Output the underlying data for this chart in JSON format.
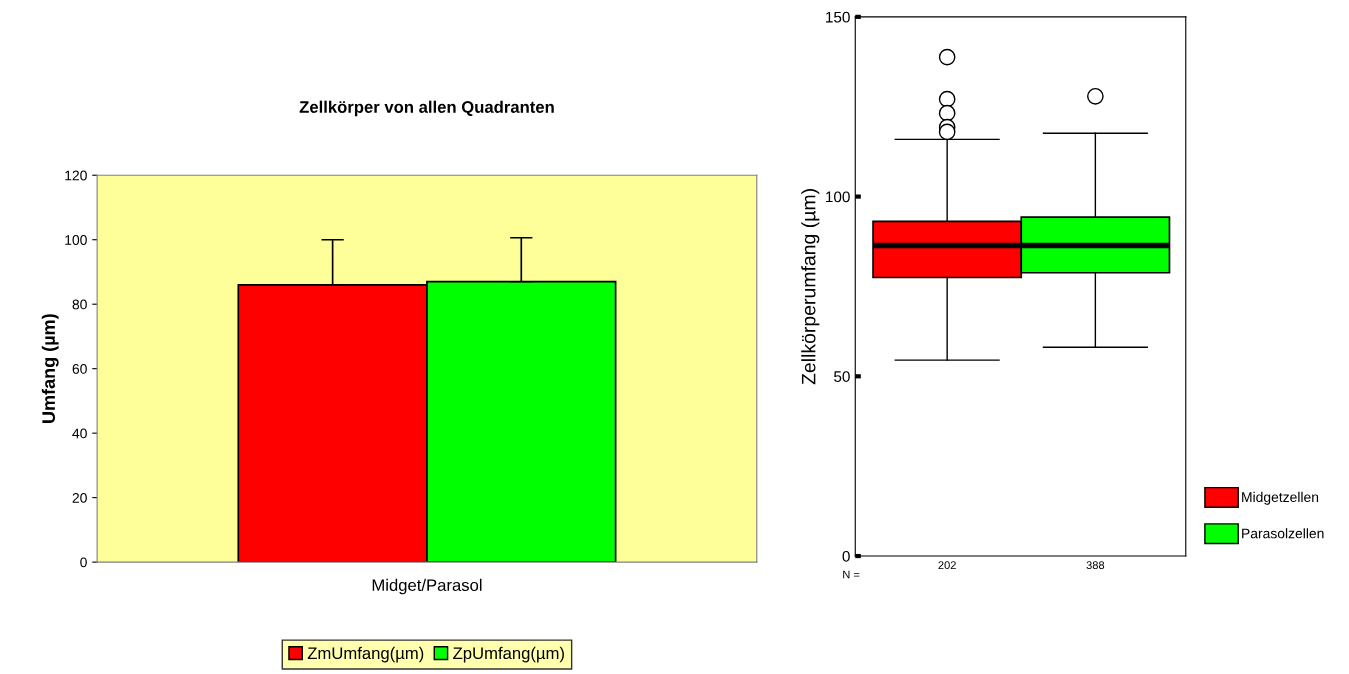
{
  "chart_data": [
    {
      "type": "bar",
      "title": "Zellkörper von allen Quadranten",
      "ylabel": "Umfang (µm)",
      "categories": [
        "Midget/Parasol"
      ],
      "series": [
        {
          "name": "ZmUmfang(µm)",
          "color": "#ff0000",
          "values": [
            86
          ],
          "errors": [
            [
              86,
              100
            ]
          ]
        },
        {
          "name": "ZpUmfang(µm)",
          "color": "#00ff00",
          "values": [
            87
          ],
          "errors": [
            [
              87,
              100.6
            ]
          ]
        }
      ],
      "ylim": [
        0,
        120
      ],
      "yticks": [
        0,
        20,
        40,
        60,
        80,
        100,
        120
      ],
      "grid": false,
      "legend": "bottom"
    },
    {
      "type": "box",
      "ylabel": "Zellkörperumfang (µm)",
      "categories": [
        "202",
        "388"
      ],
      "series": [
        {
          "name": "Midgetzellen",
          "color": "#ff0000",
          "boxes": [
            {
              "low": 54.5,
              "q1": 77.5,
              "median": 86.4,
              "q3": 93.1,
              "high": 115.9,
              "outliers": [
                138.8,
                127.1,
                123.2,
                119.3,
                118.0
              ]
            },
            null
          ]
        },
        {
          "name": "Parasolzellen",
          "color": "#00ff00",
          "boxes": [
            null,
            {
              "low": 58.1,
              "q1": 78.8,
              "median": 86.4,
              "q3": 94.3,
              "high": 117.6,
              "outliers": [
                127.9
              ]
            }
          ]
        }
      ],
      "annotations": [
        "N ="
      ],
      "ylim": [
        0,
        150
      ],
      "yticks": [
        0,
        50,
        100,
        150
      ],
      "grid": false,
      "legend": "bottom right"
    }
  ]
}
